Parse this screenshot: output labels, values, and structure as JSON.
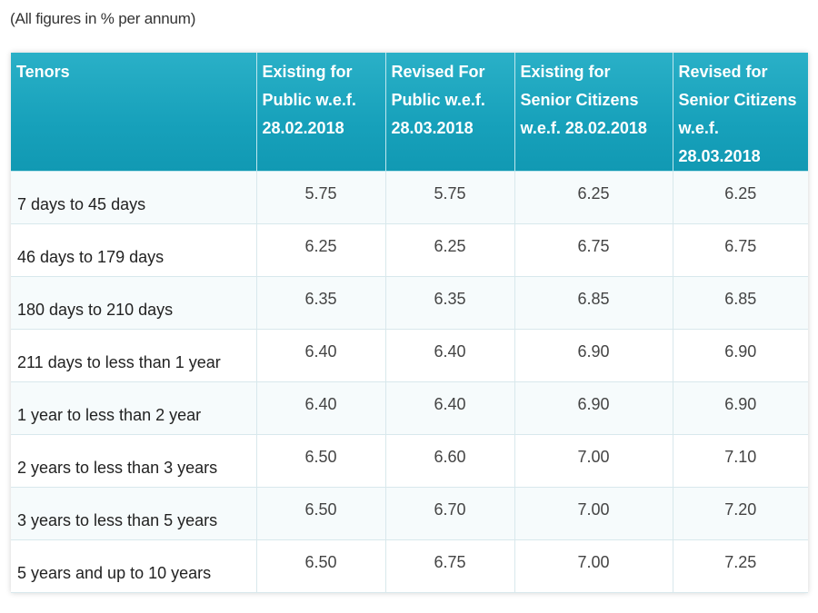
{
  "note": "(All figures in % per annum)",
  "table": {
    "headers": [
      "Tenors",
      "Existing for Public w.e.f. 28.02.2018",
      "Revised For Public w.e.f. 28.03.2018",
      "Existing for Senior Citizens w.e.f. 28.02.2018",
      "Revised for Senior Citizens w.e.f. 28.03.2018"
    ],
    "rows": [
      [
        "7 days to 45 days",
        "5.75",
        "5.75",
        "6.25",
        "6.25"
      ],
      [
        "46 days to 179 days",
        "6.25",
        "6.25",
        "6.75",
        "6.75"
      ],
      [
        "180 days to 210 days",
        "6.35",
        "6.35",
        "6.85",
        "6.85"
      ],
      [
        "211 days to less than 1 year",
        "6.40",
        "6.40",
        "6.90",
        "6.90"
      ],
      [
        "1 year to less than 2 year",
        "6.40",
        "6.40",
        "6.90",
        "6.90"
      ],
      [
        "2 years to less than 3 years",
        "6.50",
        "6.60",
        "7.00",
        "7.10"
      ],
      [
        "3 years to less than 5 years",
        "6.50",
        "6.70",
        "7.00",
        "7.20"
      ],
      [
        "5 years and up to 10 years",
        "6.50",
        "6.75",
        "7.00",
        "7.25"
      ]
    ]
  },
  "colors": {
    "header_bg": "#17a1bb",
    "header_text": "#ffffff",
    "grid": "#d8e8ec"
  }
}
